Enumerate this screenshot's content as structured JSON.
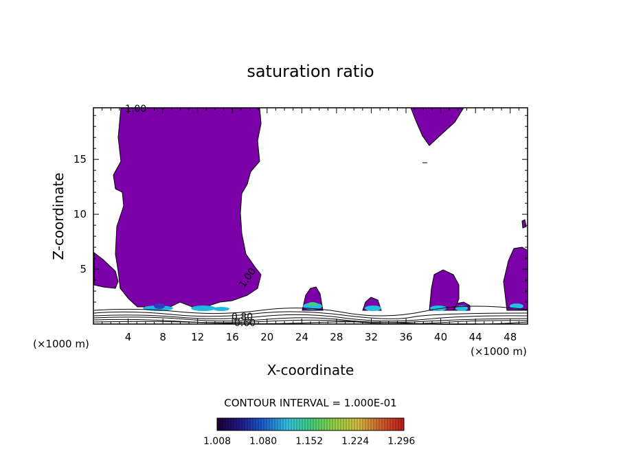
{
  "chart_data": {
    "type": "heatmap",
    "title": "saturation ratio",
    "xlabel": "X-coordinate",
    "ylabel": "Z-coordinate",
    "x_unit_left": "(×1000 m)",
    "x_unit_right": "(×1000 m)",
    "xlim": [
      0,
      50
    ],
    "ylim": [
      0,
      19.7
    ],
    "x_ticks": [
      4,
      8,
      12,
      16,
      20,
      24,
      28,
      32,
      36,
      40,
      44,
      48
    ],
    "y_ticks": [
      5,
      10,
      15
    ],
    "contour_interval_label": "CONTOUR INTERVAL = 1.000E-01",
    "contour_labels": [
      "1.00",
      "1.00",
      "0.80",
      "0.60"
    ],
    "colorbar": {
      "ticks": [
        "1.008",
        "1.080",
        "1.152",
        "1.224",
        "1.296"
      ],
      "range": [
        1.008,
        1.3
      ],
      "colors": [
        "#1a0033",
        "#1f1a8a",
        "#1a5fd0",
        "#33c0e0",
        "#40d080",
        "#90d040",
        "#d0c040",
        "#d06030",
        "#c01818"
      ]
    },
    "fill_color": "#7b00a8",
    "grid": false
  }
}
